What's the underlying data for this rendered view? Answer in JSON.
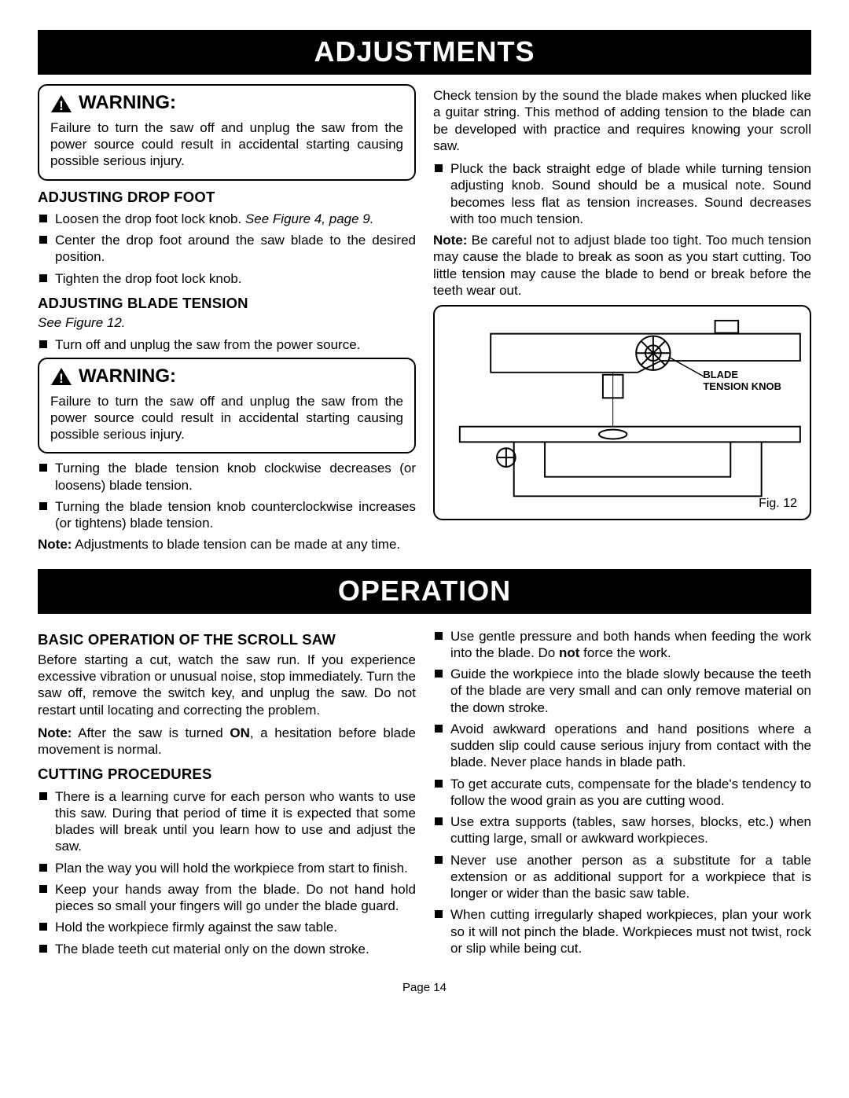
{
  "section1_title": "ADJUSTMENTS",
  "section2_title": "OPERATION",
  "warning_label": "WARNING:",
  "warning_text": "Failure to turn the saw off and unplug the saw from the power source could result in accidental starting causing possible serious injury.",
  "adj_drop_foot": {
    "title": "ADJUSTING DROP FOOT",
    "items": [
      "Loosen the drop foot lock knob. <i>See Figure 4, page 9.</i>",
      "Center the drop foot around the saw blade to the desired position.",
      "Tighten the drop foot lock knob."
    ]
  },
  "adj_blade_tension": {
    "title": "ADJUSTING BLADE TENSION",
    "see": "See Figure 12.",
    "item1": "Turn off and unplug the saw from the power source.",
    "items_after": [
      "Turning the blade tension knob clockwise decreases (or loosens) blade tension.",
      "Turning the blade tension knob counterclockwise increases (or tightens) blade tension."
    ],
    "note": "<b>Note:</b> Adjustments to blade tension can be made at any time."
  },
  "right_col_top": {
    "para1": "Check tension by the sound the blade makes when plucked like a guitar string. This method of adding tension to the blade can be developed with practice and requires knowing your scroll saw.",
    "bullet": "Pluck the back straight edge of blade while turning tension adjusting knob. Sound should be a musical note. Sound becomes less flat as tension increases. Sound decreases with too much tension.",
    "note": "<b>Note:</b> Be careful not to adjust blade too tight. Too much tension may cause the blade to break as soon as you start cutting. Too little tension may cause the blade to bend or break before the teeth wear out."
  },
  "figure12": {
    "callout": "BLADE<br>TENSION KNOB",
    "caption": "Fig. 12"
  },
  "operation_left": {
    "h1": "BASIC OPERATION OF THE SCROLL SAW",
    "p1": "Before starting a cut, watch the saw run. If you experience excessive vibration or unusual noise, stop immediately. Turn the saw off, remove the switch key, and unplug the saw. Do not restart until locating and correcting the problem.",
    "p2": "<b>Note:</b> After the saw is turned <b>ON</b>, a hesitation before blade movement is normal.",
    "h2": "CUTTING PROCEDURES",
    "items": [
      "There is a learning curve for each person who wants to use this saw. During that period of time it is expected that some blades will break until you learn how to use and adjust the saw.",
      "Plan the way you will hold the workpiece from start to finish.",
      "Keep your hands away from the blade. Do not hand hold pieces so small your fingers will go under the blade guard.",
      "Hold the workpiece firmly against the saw table.",
      "The blade teeth cut material only on the down stroke."
    ]
  },
  "operation_right": {
    "items": [
      "Use gentle pressure and both hands when feeding the work into the blade. Do <b>not</b> force the work.",
      "Guide the workpiece into the blade slowly because the teeth of the blade are very small and can only remove material on the down stroke.",
      "Avoid awkward operations and hand positions where a sudden slip could cause serious injury from contact with the blade. Never place hands in blade path.",
      "To get accurate cuts, compensate for the blade's tendency to follow the wood grain as you are cutting wood.",
      "Use extra supports (tables, saw horses, blocks, etc.) when cutting large, small or awkward workpieces.",
      "Never use another person as a substitute for a table extension or as additional support for a workpiece that is longer or wider than the basic saw table.",
      "When cutting irregularly shaped workpieces, plan your work so it will not pinch the  blade. Workpieces must not twist, rock or slip while being cut."
    ]
  },
  "page_number": "Page 14"
}
